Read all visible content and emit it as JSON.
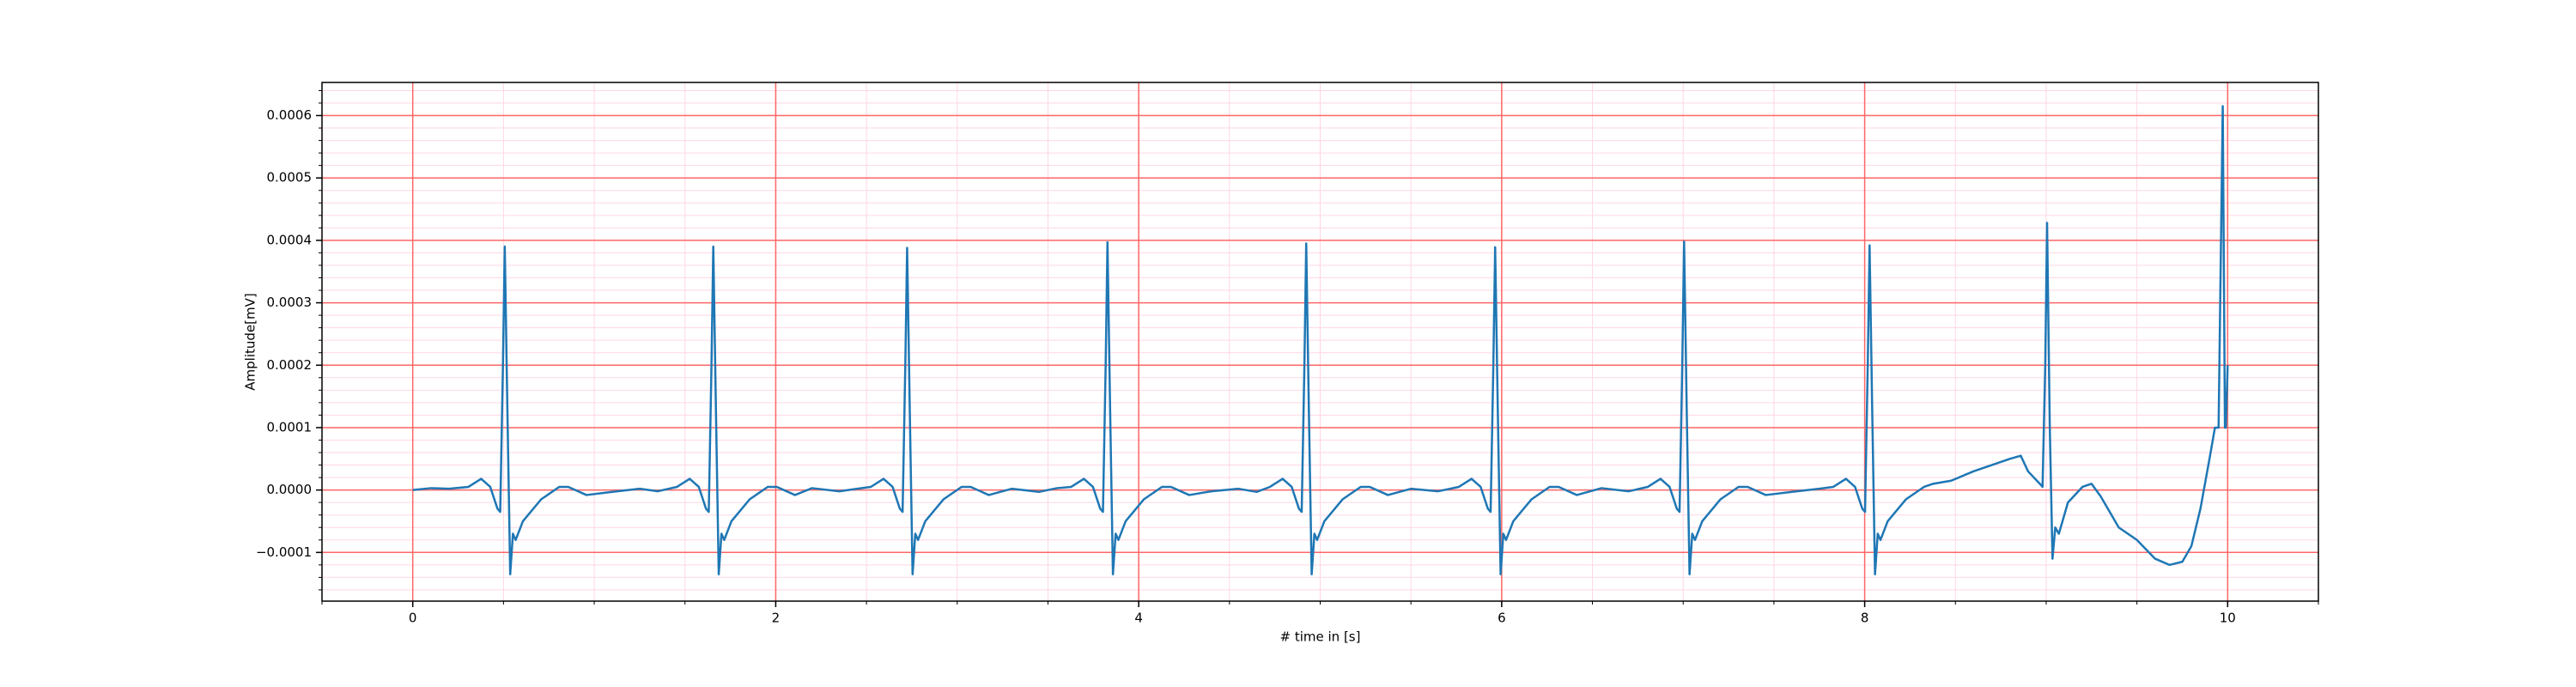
{
  "chart_data": {
    "type": "line",
    "xlabel": "# time in [s]",
    "ylabel": "Amplitude[mV]",
    "xlim": [
      -0.5,
      10.5
    ],
    "ylim": [
      -0.000178,
      0.000653
    ],
    "xticks": [
      0,
      2,
      4,
      6,
      8,
      10
    ],
    "yticks": [
      {
        "value": -0.0001,
        "label": "−0.0001"
      },
      {
        "value": 0,
        "label": "0.0000"
      },
      {
        "value": 0.0001,
        "label": "0.0001"
      },
      {
        "value": 0.0002,
        "label": "0.0002"
      },
      {
        "value": 0.0003,
        "label": "0.0003"
      },
      {
        "value": 0.0004,
        "label": "0.0004"
      },
      {
        "value": 0.0005,
        "label": "0.0005"
      },
      {
        "value": 0.0006,
        "label": "0.0006"
      }
    ],
    "grid": true,
    "grid_color": "#ff6666",
    "minor_grid": true,
    "minor_grid_color": "#ffd6e6",
    "series": [
      {
        "color": "#1f77b4",
        "x": [
          0,
          0.1,
          0.2,
          0.307,
          0.377,
          0.427,
          0.467,
          0.482,
          0.497,
          0.507,
          0.522,
          0.537,
          0.552,
          0.567,
          0.607,
          0.707,
          0.807,
          0.857,
          0.957,
          1.1,
          1.25,
          1.35,
          1.456,
          1.526,
          1.576,
          1.616,
          1.631,
          1.646,
          1.656,
          1.671,
          1.686,
          1.701,
          1.716,
          1.756,
          1.856,
          1.956,
          2.006,
          2.106,
          2.2,
          2.35,
          2.45,
          2.524,
          2.594,
          2.644,
          2.684,
          2.699,
          2.714,
          2.724,
          2.739,
          2.754,
          2.769,
          2.784,
          2.824,
          2.924,
          3.024,
          3.074,
          3.174,
          3.3,
          3.45,
          3.55,
          3.628,
          3.698,
          3.748,
          3.788,
          3.803,
          3.818,
          3.828,
          3.843,
          3.858,
          3.873,
          3.888,
          3.928,
          4.028,
          4.128,
          4.178,
          4.278,
          4.4,
          4.55,
          4.65,
          4.723,
          4.793,
          4.843,
          4.883,
          4.898,
          4.913,
          4.923,
          4.938,
          4.953,
          4.968,
          4.983,
          5.023,
          5.123,
          5.223,
          5.273,
          5.373,
          5.5,
          5.65,
          5.764,
          5.834,
          5.884,
          5.924,
          5.939,
          5.954,
          5.964,
          5.979,
          5.994,
          6.009,
          6.024,
          6.064,
          6.164,
          6.264,
          6.314,
          6.414,
          6.55,
          6.7,
          6.805,
          6.875,
          6.925,
          6.965,
          6.98,
          6.995,
          7.005,
          7.02,
          7.035,
          7.05,
          7.065,
          7.105,
          7.205,
          7.305,
          7.355,
          7.455,
          7.6,
          7.75,
          7.827,
          7.897,
          7.947,
          7.987,
          8.002,
          8.017,
          8.027,
          8.042,
          8.057,
          8.072,
          8.087,
          8.127,
          8.227,
          8.327,
          8.377,
          8.477,
          8.6,
          8.7,
          8.8,
          8.86,
          8.9,
          8.965,
          8.98,
          8.995,
          9.005,
          9.02,
          9.035,
          9.05,
          9.07,
          9.12,
          9.2,
          9.25,
          9.3,
          9.4,
          9.5,
          9.6,
          9.68,
          9.75,
          9.8,
          9.85,
          9.9,
          9.93,
          9.95,
          9.973,
          9.985,
          9.99,
          10.0
        ],
        "values": [
          0,
          3e-06,
          2e-06,
          5e-06,
          1.8e-05,
          5e-06,
          -3e-05,
          -3.5e-05,
          0.0002,
          0.00039,
          0.00012,
          -0.000135,
          -7e-05,
          -8e-05,
          -5e-05,
          -1.5e-05,
          5e-06,
          5e-06,
          -8e-06,
          -3e-06,
          2e-06,
          -2e-06,
          5e-06,
          1.8e-05,
          5e-06,
          -3e-05,
          -3.5e-05,
          0.0002,
          0.00039,
          0.00012,
          -0.000135,
          -7e-05,
          -8e-05,
          -5e-05,
          -1.5e-05,
          5e-06,
          5e-06,
          -8e-06,
          3e-06,
          -2e-06,
          2e-06,
          5e-06,
          1.8e-05,
          5e-06,
          -3e-05,
          -3.5e-05,
          0.0002,
          0.000388,
          0.00012,
          -0.000135,
          -7e-05,
          -8e-05,
          -5e-05,
          -1.5e-05,
          5e-06,
          5e-06,
          -8e-06,
          2e-06,
          -3e-06,
          3e-06,
          5e-06,
          1.8e-05,
          5e-06,
          -3e-05,
          -3.5e-05,
          0.0002,
          0.000397,
          0.00012,
          -0.000135,
          -7e-05,
          -8e-05,
          -5e-05,
          -1.5e-05,
          5e-06,
          5e-06,
          -8e-06,
          -2e-06,
          2e-06,
          -3e-06,
          5e-06,
          1.8e-05,
          5e-06,
          -3e-05,
          -3.5e-05,
          0.0002,
          0.000395,
          0.00012,
          -0.000135,
          -7e-05,
          -8e-05,
          -5e-05,
          -1.5e-05,
          5e-06,
          5e-06,
          -8e-06,
          2e-06,
          -2e-06,
          5e-06,
          1.8e-05,
          5e-06,
          -3e-05,
          -3.5e-05,
          0.0002,
          0.000389,
          0.00012,
          -0.000135,
          -7e-05,
          -8e-05,
          -5e-05,
          -1.5e-05,
          5e-06,
          5e-06,
          -8e-06,
          3e-06,
          -2e-06,
          5e-06,
          1.8e-05,
          5e-06,
          -3e-05,
          -3.5e-05,
          0.0002,
          0.000398,
          0.00012,
          -0.000135,
          -7e-05,
          -8e-05,
          -5e-05,
          -1.5e-05,
          5e-06,
          5e-06,
          -8e-06,
          -3e-06,
          2e-06,
          5e-06,
          1.8e-05,
          5e-06,
          -3e-05,
          -3.5e-05,
          0.0002,
          0.000392,
          0.00012,
          -0.000135,
          -7e-05,
          -8e-05,
          -5e-05,
          -1.5e-05,
          5e-06,
          1e-05,
          1.5e-05,
          3e-05,
          4e-05,
          5e-05,
          5.5e-05,
          3e-05,
          1e-05,
          5e-06,
          0.0002,
          0.000428,
          0.0001,
          -0.00011,
          -6e-05,
          -7e-05,
          -2e-05,
          5e-06,
          1e-05,
          -1e-05,
          -6e-05,
          -8e-05,
          -0.00011,
          -0.00012,
          -0.000115,
          -9e-05,
          -3e-05,
          5e-05,
          0.0001,
          0.0001,
          0.000615,
          0.0001,
          0.0001,
          0.0002
        ]
      }
    ]
  }
}
